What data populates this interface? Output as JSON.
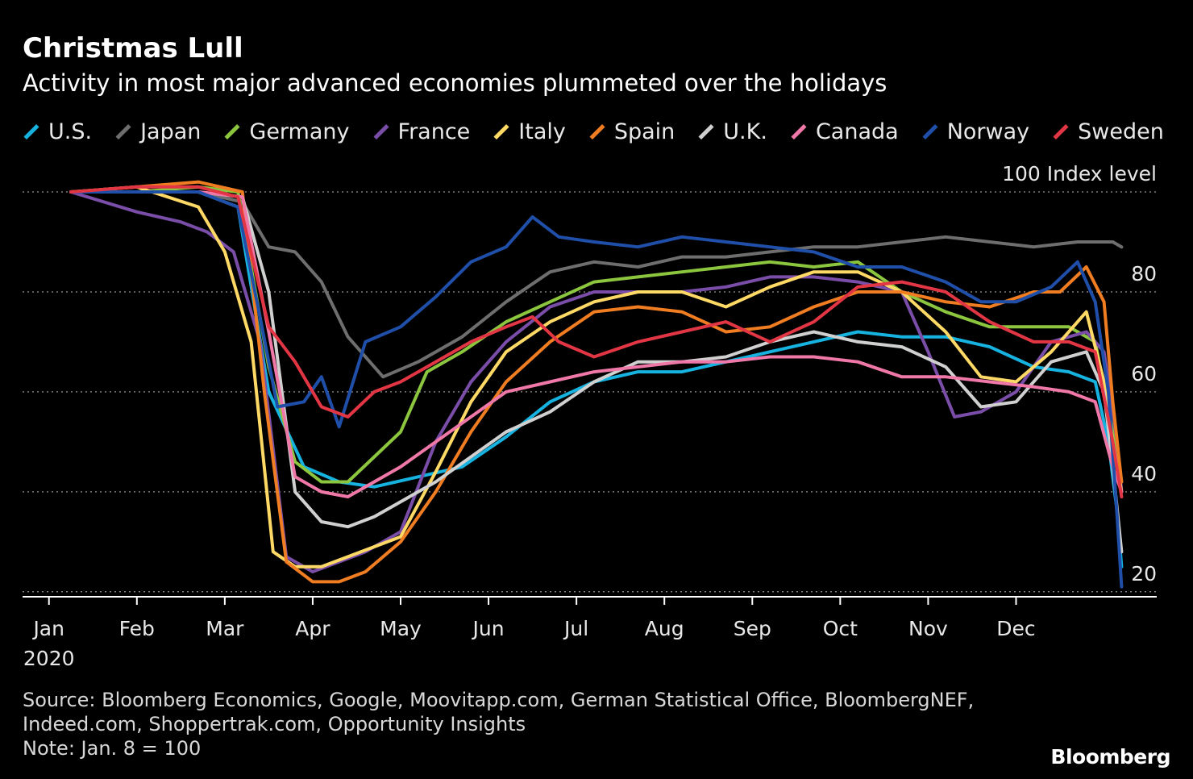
{
  "title": "Christmas Lull",
  "subtitle": "Activity in most major advanced economies plummeted over the holidays",
  "source_lines": [
    "Source: Bloomberg Economics, Google, Moovitapp.com, German Statistical Office, BloombergNEF,",
    "Indeed.com, Shoppertrak.com, Opportunity Insights",
    "Note: Jan. 8 = 100"
  ],
  "brand": "Bloomberg",
  "colors": {
    "background": "#000000",
    "grid": "#7a7a7a",
    "axis": "#ffffff",
    "text": "#ffffff"
  },
  "chart_data": {
    "type": "line",
    "title": "Christmas Lull",
    "subtitle": "Activity in most major advanced economies plummeted over the holidays",
    "ylabel": "Index level",
    "ylim": [
      19,
      100
    ],
    "y_ticks": [
      20,
      40,
      60,
      80,
      100
    ],
    "y_tick_labels": [
      "20",
      "40",
      "60",
      "80",
      "100"
    ],
    "y_top_label": "100 Index level",
    "x_ticks": [
      "Jan",
      "Feb",
      "Mar",
      "Apr",
      "May",
      "Jun",
      "Jul",
      "Aug",
      "Sep",
      "Oct",
      "Nov",
      "Dec"
    ],
    "x_year_label": "2020",
    "x_months": [
      1,
      2,
      3,
      4,
      5,
      6,
      7,
      8,
      9,
      10,
      11,
      12
    ],
    "x_range_months": [
      0.7,
      13.6
    ],
    "grid": "horizontal-dotted",
    "legend": "top",
    "series": [
      {
        "name": "U.S.",
        "color": "#17b3e0",
        "x": [
          1.25,
          2,
          2.7,
          3.15,
          3.5,
          3.9,
          4.3,
          4.7,
          5.2,
          5.7,
          6.2,
          6.7,
          7.2,
          7.7,
          8.2,
          8.7,
          9.2,
          9.7,
          10.2,
          10.7,
          11.2,
          11.7,
          12.2,
          12.6,
          12.9,
          13.05,
          13.15,
          13.2
        ],
        "values": [
          100,
          100,
          100,
          97,
          60,
          45,
          42,
          41,
          43,
          45,
          51,
          58,
          62,
          64,
          64,
          66,
          68,
          70,
          72,
          71,
          71,
          69,
          65,
          64,
          62,
          50,
          36,
          25
        ]
      },
      {
        "name": "Japan",
        "color": "#6e6e6e",
        "x": [
          1.25,
          2,
          2.7,
          3.2,
          3.5,
          3.8,
          4.1,
          4.4,
          4.8,
          5.2,
          5.7,
          6.2,
          6.7,
          7.2,
          7.7,
          8.2,
          8.7,
          9.2,
          9.7,
          10.2,
          10.7,
          11.2,
          11.7,
          12.2,
          12.7,
          13.1,
          13.2
        ],
        "values": [
          100,
          100,
          100,
          98,
          89,
          88,
          82,
          71,
          63,
          66,
          71,
          78,
          84,
          86,
          85,
          87,
          87,
          88,
          89,
          89,
          90,
          91,
          90,
          89,
          90,
          90,
          89
        ]
      },
      {
        "name": "Germany",
        "color": "#8cc63f",
        "x": [
          1.25,
          2,
          2.7,
          3.15,
          3.5,
          3.8,
          4.1,
          4.4,
          4.7,
          5.0,
          5.3,
          5.7,
          6.2,
          6.7,
          7.2,
          7.7,
          8.2,
          8.7,
          9.2,
          9.7,
          10.2,
          10.7,
          11.2,
          11.7,
          12.2,
          12.6,
          12.9,
          13.1,
          13.2
        ],
        "values": [
          100,
          100,
          101,
          100,
          65,
          46,
          42,
          42,
          47,
          52,
          64,
          68,
          74,
          78,
          82,
          83,
          84,
          85,
          86,
          85,
          86,
          80,
          76,
          73,
          73,
          73,
          70,
          52,
          42
        ]
      },
      {
        "name": "France",
        "color": "#7a4ea8",
        "x": [
          1.25,
          2,
          2.5,
          2.8,
          3.1,
          3.4,
          3.7,
          4.0,
          4.3,
          4.6,
          5.0,
          5.4,
          5.8,
          6.2,
          6.7,
          7.2,
          7.7,
          8.2,
          8.7,
          9.2,
          9.7,
          10.2,
          10.7,
          11.0,
          11.3,
          11.6,
          12.0,
          12.4,
          12.8,
          13.0,
          13.15,
          13.2
        ],
        "values": [
          100,
          96,
          94,
          92,
          88,
          70,
          27,
          24,
          26,
          28,
          32,
          50,
          62,
          70,
          77,
          80,
          80,
          80,
          81,
          83,
          83,
          82,
          80,
          68,
          55,
          56,
          60,
          70,
          72,
          68,
          50,
          40
        ]
      },
      {
        "name": "Italy",
        "color": "#ffd966",
        "x": [
          1.25,
          2,
          2.7,
          3.0,
          3.3,
          3.55,
          3.8,
          4.1,
          4.4,
          4.7,
          5.0,
          5.4,
          5.8,
          6.2,
          6.7,
          7.2,
          7.7,
          8.2,
          8.7,
          9.2,
          9.7,
          10.2,
          10.7,
          11.2,
          11.6,
          12.0,
          12.4,
          12.8,
          13.0,
          13.1,
          13.2
        ],
        "values": [
          100,
          101,
          97,
          88,
          70,
          28,
          25,
          25,
          27,
          29,
          31,
          44,
          58,
          68,
          74,
          78,
          80,
          80,
          77,
          81,
          84,
          84,
          80,
          72,
          63,
          62,
          68,
          76,
          62,
          50,
          40
        ]
      },
      {
        "name": "Spain",
        "color": "#f07d21",
        "x": [
          1.25,
          2,
          2.7,
          3.2,
          3.45,
          3.7,
          4.0,
          4.3,
          4.6,
          5.0,
          5.4,
          5.8,
          6.2,
          6.7,
          7.2,
          7.7,
          8.2,
          8.7,
          9.2,
          9.7,
          10.2,
          10.7,
          11.2,
          11.7,
          12.2,
          12.5,
          12.8,
          13.0,
          13.1,
          13.2
        ],
        "values": [
          100,
          101,
          102,
          100,
          60,
          26,
          22,
          22,
          24,
          30,
          40,
          52,
          62,
          70,
          76,
          77,
          76,
          72,
          73,
          77,
          80,
          80,
          78,
          77,
          80,
          80,
          85,
          78,
          58,
          42
        ]
      },
      {
        "name": "U.K.",
        "color": "#d0d0d0",
        "x": [
          1.25,
          2,
          2.7,
          3.2,
          3.5,
          3.8,
          4.1,
          4.4,
          4.7,
          5.0,
          5.4,
          5.8,
          6.2,
          6.7,
          7.2,
          7.7,
          8.2,
          8.7,
          9.2,
          9.7,
          10.2,
          10.7,
          11.2,
          11.6,
          12.0,
          12.4,
          12.8,
          13.0,
          13.1,
          13.2
        ],
        "values": [
          100,
          100,
          100,
          99,
          80,
          40,
          34,
          33,
          35,
          38,
          42,
          47,
          52,
          56,
          62,
          66,
          66,
          67,
          70,
          72,
          70,
          69,
          65,
          57,
          58,
          66,
          68,
          60,
          45,
          28
        ]
      },
      {
        "name": "Canada",
        "color": "#f078a8",
        "x": [
          1.25,
          2,
          2.7,
          3.2,
          3.5,
          3.8,
          4.1,
          4.4,
          4.7,
          5.0,
          5.4,
          5.8,
          6.2,
          6.7,
          7.2,
          7.7,
          8.2,
          8.7,
          9.2,
          9.7,
          10.2,
          10.7,
          11.2,
          11.7,
          12.2,
          12.6,
          12.9,
          13.1,
          13.2
        ],
        "values": [
          100,
          100,
          100,
          99,
          72,
          43,
          40,
          39,
          42,
          45,
          50,
          55,
          60,
          62,
          64,
          65,
          66,
          66,
          67,
          67,
          66,
          63,
          63,
          62,
          61,
          60,
          58,
          45,
          40
        ]
      },
      {
        "name": "Norway",
        "color": "#1f4fa8",
        "x": [
          1.25,
          2,
          2.7,
          3.15,
          3.4,
          3.6,
          3.9,
          4.1,
          4.3,
          4.6,
          5.0,
          5.4,
          5.8,
          6.2,
          6.5,
          6.8,
          7.2,
          7.7,
          8.2,
          8.7,
          9.2,
          9.7,
          10.2,
          10.7,
          11.2,
          11.6,
          12.0,
          12.4,
          12.7,
          12.9,
          13.05,
          13.15,
          13.2
        ],
        "values": [
          100,
          100,
          100,
          97,
          75,
          57,
          58,
          63,
          53,
          70,
          73,
          79,
          86,
          89,
          95,
          91,
          90,
          89,
          91,
          90,
          89,
          88,
          85,
          85,
          82,
          78,
          78,
          81,
          86,
          78,
          60,
          35,
          21
        ]
      },
      {
        "name": "Sweden",
        "color": "#e23645",
        "x": [
          1.25,
          2,
          2.7,
          3.15,
          3.5,
          3.8,
          4.1,
          4.4,
          4.7,
          5.0,
          5.4,
          5.8,
          6.2,
          6.5,
          6.8,
          7.2,
          7.7,
          8.2,
          8.7,
          9.2,
          9.7,
          10.2,
          10.7,
          11.2,
          11.7,
          12.2,
          12.6,
          12.9,
          13.1,
          13.2
        ],
        "values": [
          100,
          101,
          101,
          99,
          73,
          66,
          57,
          55,
          60,
          62,
          66,
          70,
          73,
          75,
          70,
          67,
          70,
          72,
          74,
          70,
          74,
          81,
          82,
          80,
          74,
          70,
          70,
          68,
          50,
          39
        ]
      }
    ]
  }
}
